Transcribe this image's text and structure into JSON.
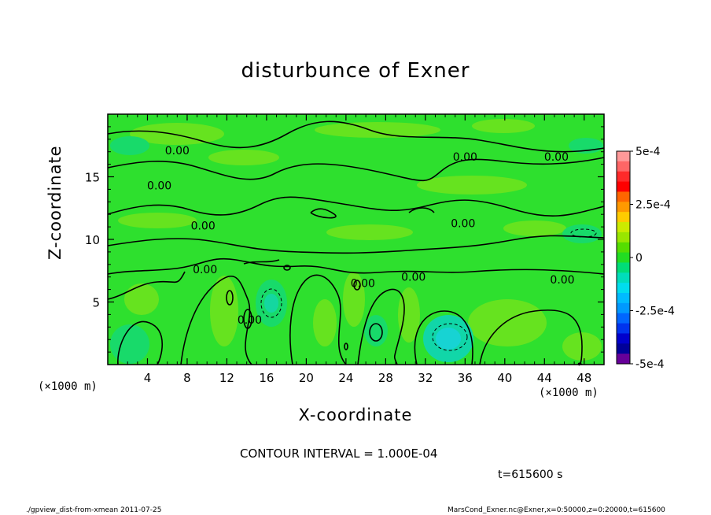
{
  "chart_data": {
    "type": "heatmap",
    "title": "disturbunce of Exner",
    "xlabel": "X-coordinate",
    "ylabel": "Z-coordinate",
    "x_unit": "(×1000 m)",
    "y_unit": "(×1000 m)",
    "xlim": [
      0,
      50
    ],
    "ylim": [
      0,
      20
    ],
    "x_ticks": [
      4,
      8,
      12,
      16,
      20,
      24,
      28,
      32,
      36,
      40,
      44,
      48
    ],
    "y_ticks": [
      5,
      10,
      15
    ],
    "grid": false,
    "colorbar": {
      "range": [
        -0.0005,
        0.0005
      ],
      "tick_labels": [
        "5e-4",
        "2.5e-4",
        "0",
        "-2.5e-4",
        "-5e-4"
      ],
      "tick_values": [
        0.0005,
        0.00025,
        0,
        -0.00025,
        -0.0005
      ],
      "levels": [
        {
          "color": "#ff9999"
        },
        {
          "color": "#ff6666"
        },
        {
          "color": "#ff2a2a"
        },
        {
          "color": "#ff0000"
        },
        {
          "color": "#ff6600"
        },
        {
          "color": "#ff9900"
        },
        {
          "color": "#ffcc00"
        },
        {
          "color": "#cceb00"
        },
        {
          "color": "#99e600"
        },
        {
          "color": "#55dd00"
        },
        {
          "color": "#22dd22"
        },
        {
          "color": "#00dd77"
        },
        {
          "color": "#00ddbb"
        },
        {
          "color": "#00ddee"
        },
        {
          "color": "#00bbff"
        },
        {
          "color": "#0099ff"
        },
        {
          "color": "#0066ff"
        },
        {
          "color": "#0033ee"
        },
        {
          "color": "#0000cc"
        },
        {
          "color": "#000099"
        },
        {
          "color": "#660099"
        }
      ]
    },
    "contour_labels": [
      {
        "text": "0.00",
        "x": 7.0,
        "z": 17.1
      },
      {
        "text": "0.00",
        "x": 5.2,
        "z": 14.3
      },
      {
        "text": "0.00",
        "x": 9.6,
        "z": 11.1
      },
      {
        "text": "0.00",
        "x": 9.8,
        "z": 7.6
      },
      {
        "text": "0.00",
        "x": 36.0,
        "z": 16.6
      },
      {
        "text": "0.00",
        "x": 45.2,
        "z": 16.6
      },
      {
        "text": "0.00",
        "x": 35.8,
        "z": 11.3
      },
      {
        "text": "0.00",
        "x": 45.8,
        "z": 6.8
      },
      {
        "text": "0.00",
        "x": 14.3,
        "z": 3.6
      },
      {
        "text": "0.00",
        "x": 30.8,
        "z": 7.0
      },
      {
        "text": "0.00",
        "x": 25.7,
        "z": 6.5
      }
    ],
    "contour_interval": "CONTOUR INTERVAL = 1.000E-04",
    "time": "t=615600 s"
  },
  "labels": {
    "footer_left": "./gpview_dist-from-xmean  2011-07-25",
    "footer_right": "MarsCond_Exner.nc@Exner,x=0:50000,z=0:20000,t=615600"
  },
  "colors": {
    "background_field": "#2ee02e",
    "light_field": "#66e31f",
    "cool_field": "#18da6a"
  }
}
